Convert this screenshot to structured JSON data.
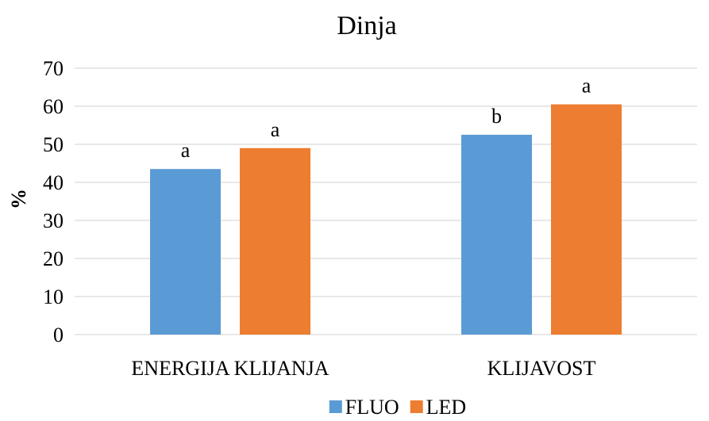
{
  "chart_data": {
    "type": "bar",
    "title": "Dinja",
    "xlabel": "",
    "ylabel": "%",
    "ylim": [
      0,
      70
    ],
    "yticks": [
      "0",
      "10",
      "20",
      "30",
      "40",
      "50",
      "60",
      "70"
    ],
    "grid": true,
    "legend_position": "bottom",
    "categories": [
      "ENERGIJA KLIJANJA",
      "KLIJAVOST"
    ],
    "series": [
      {
        "name": "FLUO",
        "color": "#5b9bd5",
        "values": [
          43.5,
          52.5
        ],
        "annotations": [
          "a",
          "b"
        ]
      },
      {
        "name": "LED",
        "color": "#ed7d31",
        "values": [
          49,
          60.5
        ],
        "annotations": [
          "a",
          "a"
        ]
      }
    ]
  }
}
